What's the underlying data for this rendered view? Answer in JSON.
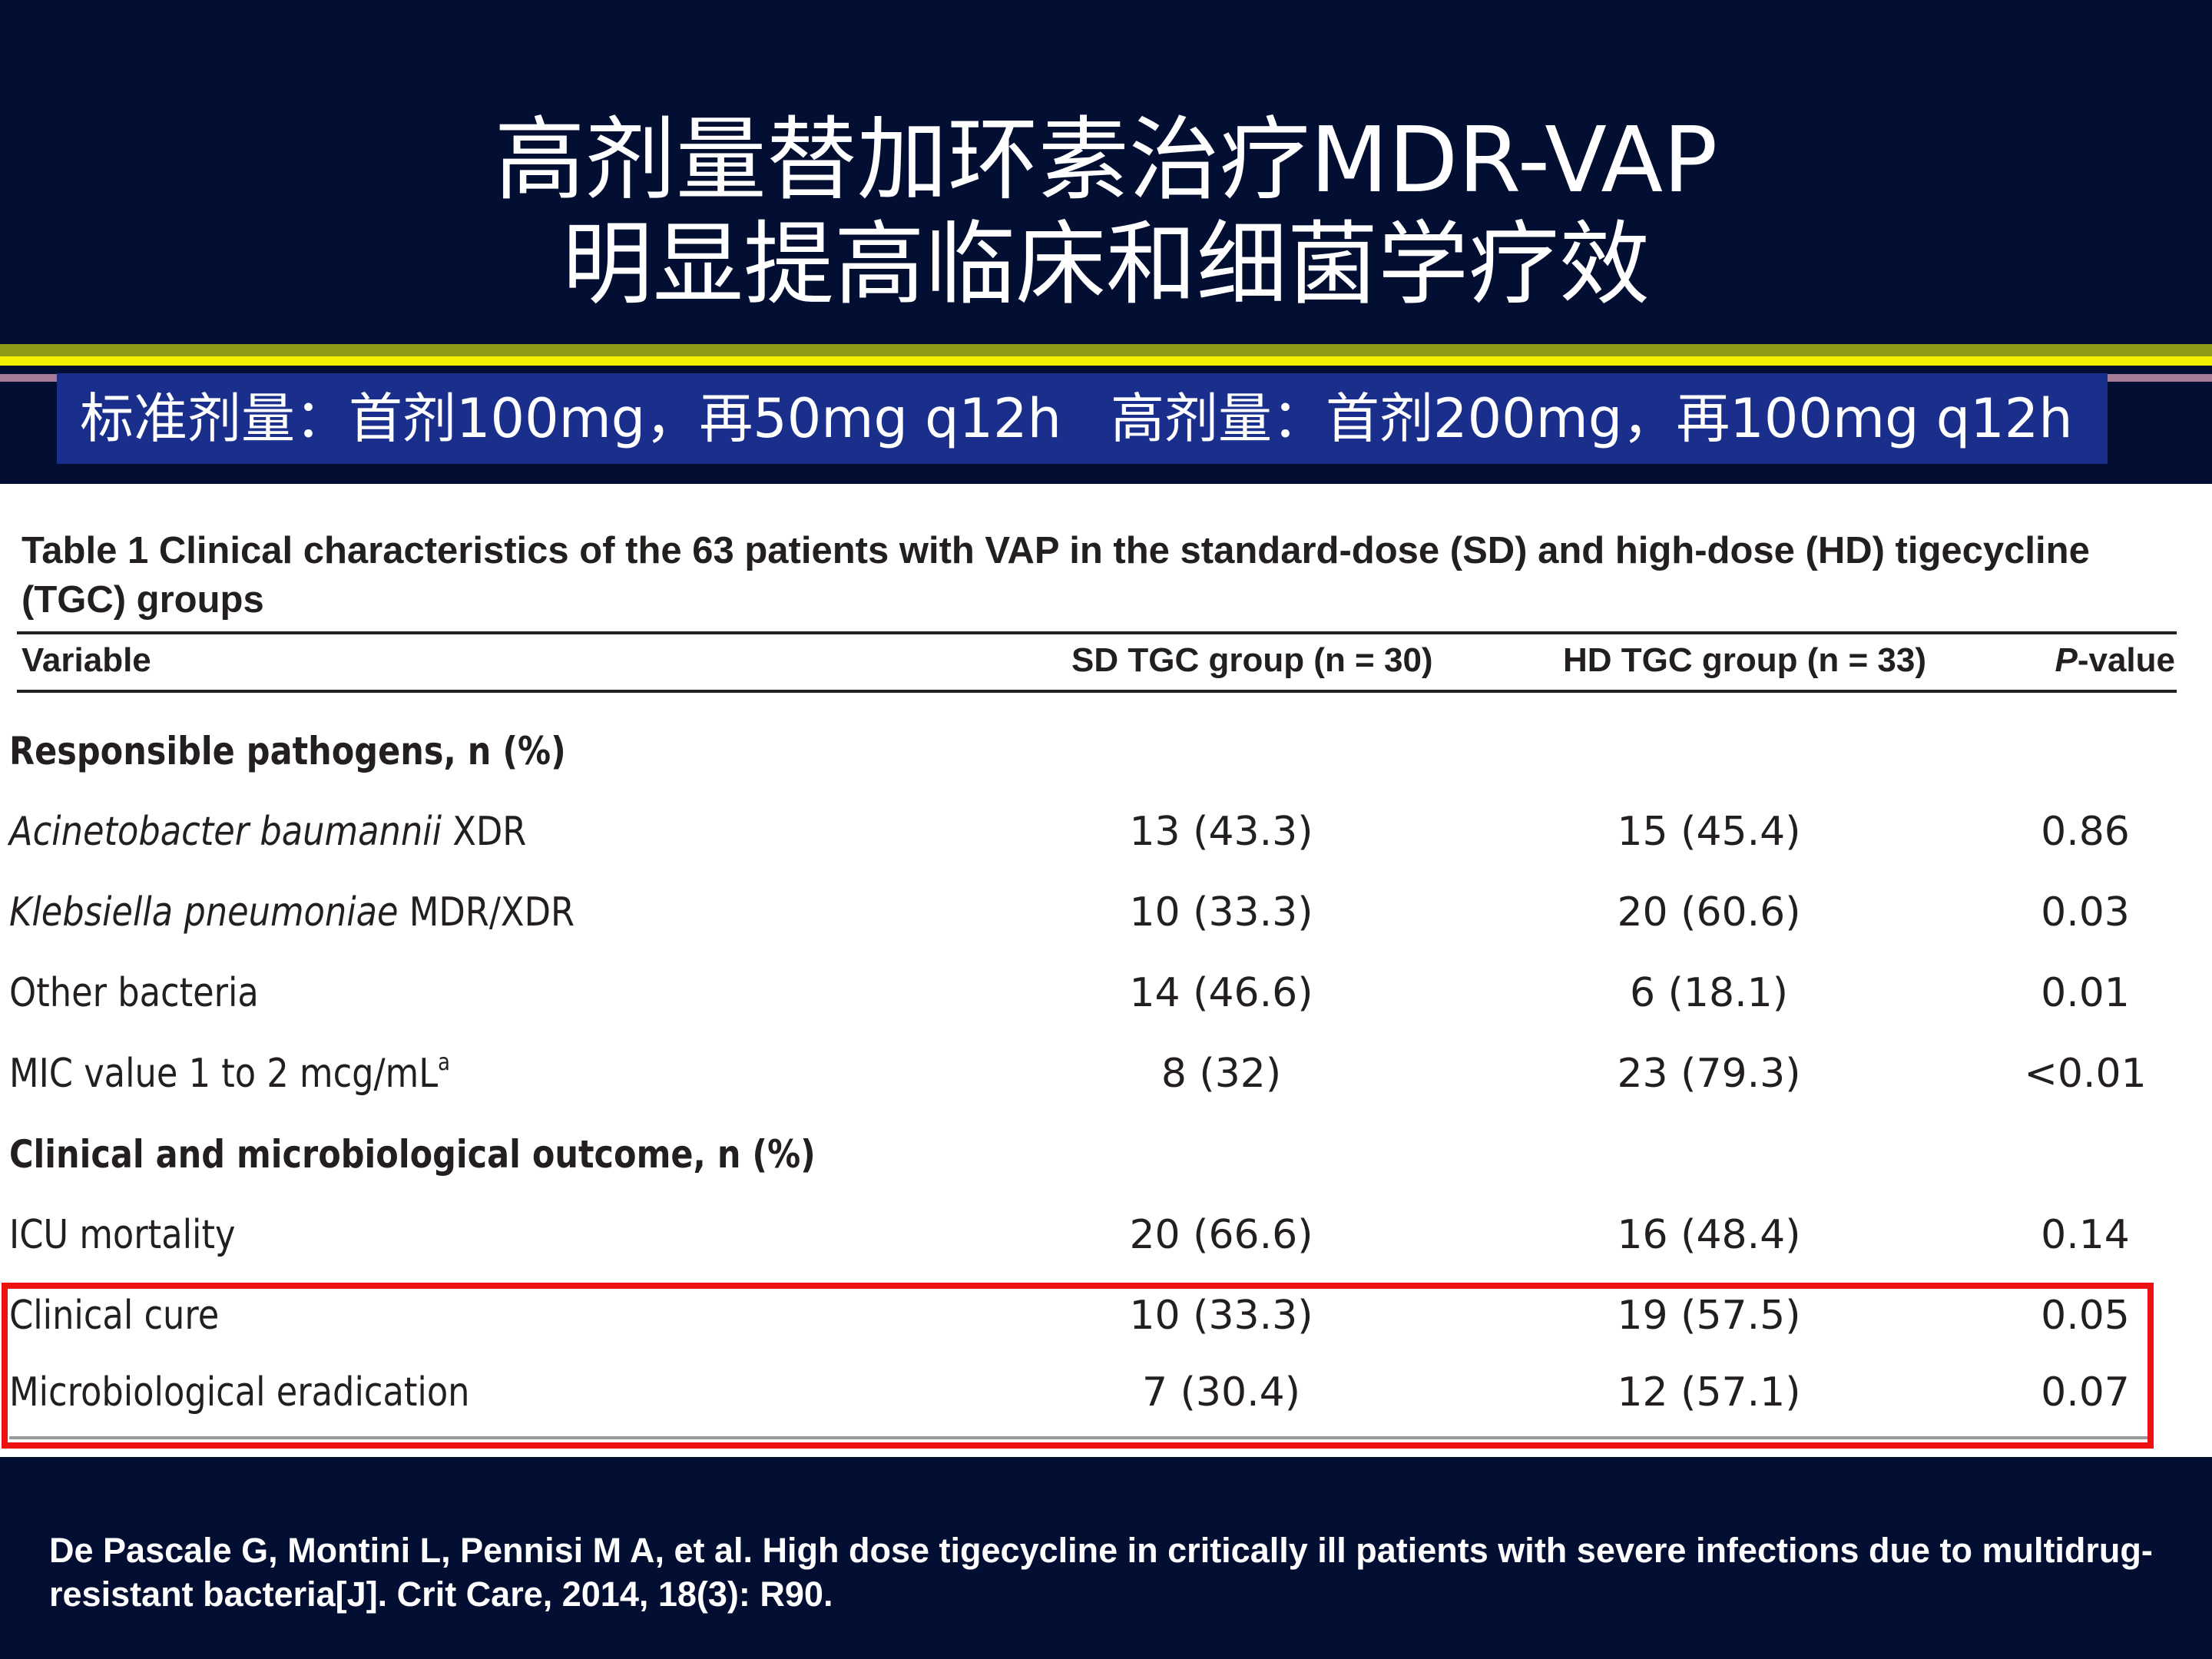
{
  "title": {
    "line1": "高剂量替加环素治疗MDR-VAP",
    "line2": "明显提高临床和细菌学疗效"
  },
  "dose_band": {
    "standard": "标准剂量：首剂100mg，再50mg q12h",
    "high": "高剂量：首剂200mg，再100mg q12h"
  },
  "table": {
    "caption": "Table 1 Clinical characteristics of the 63 patients with VAP in the standard-dose (SD) and high-dose (HD) tigecycline (TGC) groups",
    "headers": {
      "variable": "Variable",
      "sd": "SD TGC group (n = 30)",
      "hd": "HD TGC group (n = 33)",
      "p_italic": "P",
      "p_rest": "-value"
    },
    "section_pathogens": "Responsible pathogens, n (%)",
    "row_acineto": {
      "label_italic": "Acinetobacter baumannii",
      "label_rest": " XDR",
      "sd": "13 (43.3)",
      "hd": "15 (45.4)",
      "p": "0.86"
    },
    "row_klebs": {
      "label_italic": "Klebsiella pneumoniae",
      "label_rest": " MDR/XDR",
      "sd": "10 (33.3)",
      "hd": "20 (60.6)",
      "p": "0.03"
    },
    "row_other": {
      "label": "Other bacteria",
      "sd": "14 (46.6)",
      "hd": "6 (18.1)",
      "p": "0.01"
    },
    "row_mic": {
      "label": "MIC value 1 to 2 mcg/mL",
      "sup": "a",
      "sd": "8 (32)",
      "hd": "23 (79.3)",
      "p": "<0.01"
    },
    "section_outcome": "Clinical and microbiological outcome, n (%)",
    "row_icu": {
      "label": "ICU mortality",
      "sd": "20 (66.6)",
      "hd": "16 (48.4)",
      "p": "0.14"
    },
    "row_cure": {
      "label": "Clinical cure",
      "sd": "10 (33.3)",
      "hd": "19 (57.5)",
      "p": "0.05"
    },
    "row_erad": {
      "label": "Microbiological eradication",
      "sd": "7 (30.4)",
      "hd": "12 (57.1)",
      "p": "0.07"
    }
  },
  "reference": "De Pascale G, Montini L, Pennisi M A, et al. High dose tigecycline in critically ill patients with severe infections due to multidrug-resistant bacteria[J]. Crit Care, 2014, 18(3): R90.",
  "colors": {
    "background": "#020f33",
    "dose_band": "#1a2f8c",
    "stripe_yellow": "#f3ef00",
    "highlight_box": "#ee1111"
  }
}
